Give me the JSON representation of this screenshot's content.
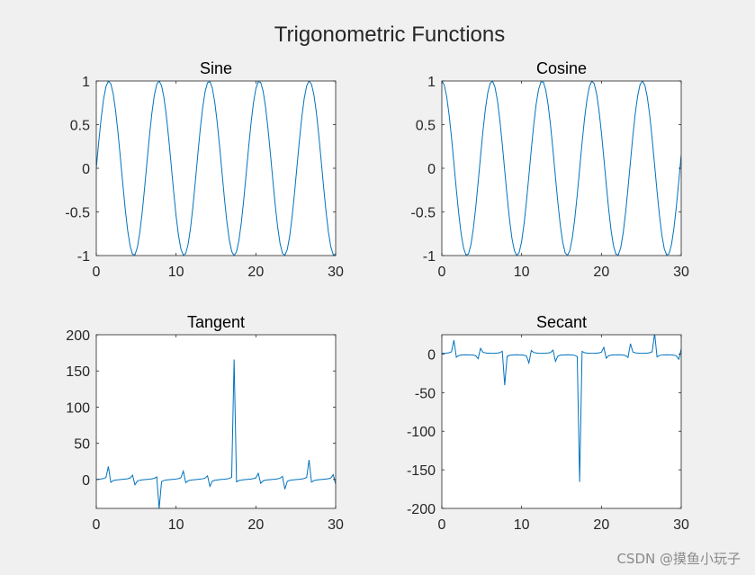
{
  "figure": {
    "title": "Trigonometric Functions",
    "watermark": "CSDN @摸鱼小玩子",
    "background": "#f0f0f0",
    "line_color": "#0072bd"
  },
  "chart_data": [
    {
      "type": "line",
      "title": "Sine",
      "function": "sin",
      "x_range": [
        0,
        30
      ],
      "samples": 100,
      "xlim": [
        0,
        30
      ],
      "ylim": [
        -1,
        1
      ],
      "xticks": [
        0,
        10,
        20,
        30
      ],
      "yticks": [
        -1,
        -0.5,
        0,
        0.5,
        1
      ],
      "xtick_labels": [
        "0",
        "10",
        "20",
        "30"
      ],
      "ytick_labels": [
        "-1",
        "-0.5",
        "0",
        "0.5",
        "1"
      ]
    },
    {
      "type": "line",
      "title": "Cosine",
      "function": "cos",
      "x_range": [
        0,
        30
      ],
      "samples": 100,
      "xlim": [
        0,
        30
      ],
      "ylim": [
        -1,
        1
      ],
      "xticks": [
        0,
        10,
        20,
        30
      ],
      "yticks": [
        -1,
        -0.5,
        0,
        0.5,
        1
      ],
      "xtick_labels": [
        "0",
        "10",
        "20",
        "30"
      ],
      "ytick_labels": [
        "-1",
        "-0.5",
        "0",
        "0.5",
        "1"
      ]
    },
    {
      "type": "line",
      "title": "Tangent",
      "function": "tan",
      "x_range": [
        0,
        30
      ],
      "samples": 100,
      "xlim": [
        0,
        30
      ],
      "ylim": [
        -40,
        200
      ],
      "xticks": [
        0,
        10,
        20,
        30
      ],
      "yticks": [
        0,
        50,
        100,
        150,
        200
      ],
      "xtick_labels": [
        "0",
        "10",
        "20",
        "30"
      ],
      "ytick_labels": [
        "0",
        "50",
        "100",
        "150",
        "200"
      ]
    },
    {
      "type": "line",
      "title": "Secant",
      "function": "sec",
      "x_range": [
        0,
        30
      ],
      "samples": 100,
      "xlim": [
        0,
        30
      ],
      "ylim": [
        -200,
        25
      ],
      "xticks": [
        0,
        10,
        20,
        30
      ],
      "yticks": [
        -200,
        -150,
        -100,
        -50,
        0
      ],
      "xtick_labels": [
        "0",
        "10",
        "20",
        "30"
      ],
      "ytick_labels": [
        "-200",
        "-150",
        "-100",
        "-50",
        "0"
      ]
    }
  ]
}
